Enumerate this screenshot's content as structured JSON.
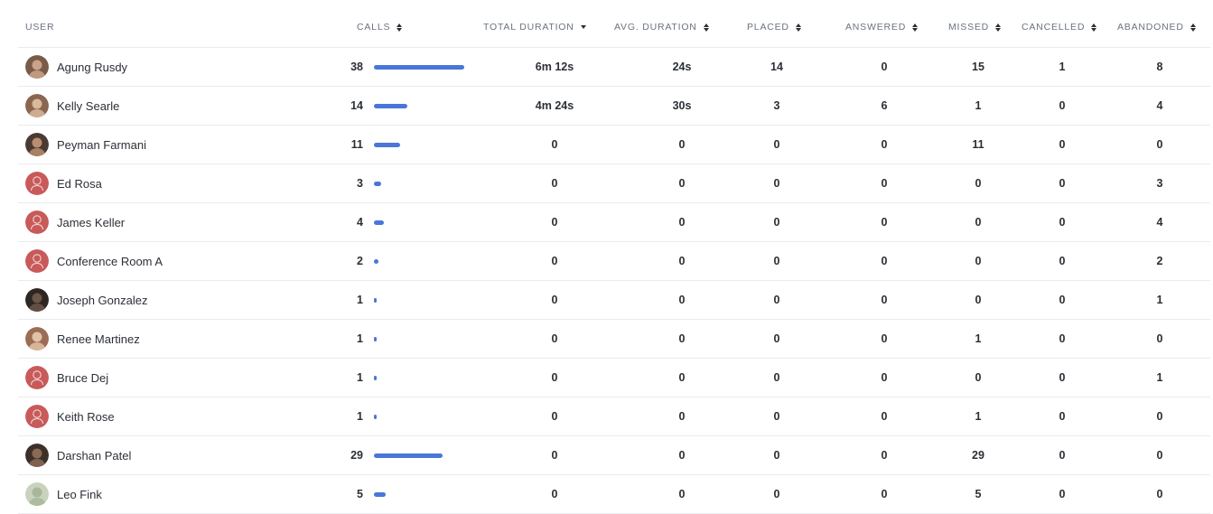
{
  "columns": {
    "user": "USER",
    "calls": "CALLS",
    "total_duration": "TOTAL DURATION",
    "avg_duration": "AVG. DURATION",
    "placed": "PLACED",
    "answered": "ANSWERED",
    "missed": "MISSED",
    "cancelled": "CANCELLED",
    "abandoned": "ABANDONED"
  },
  "sort": {
    "column": "total_duration",
    "direction": "descending"
  },
  "bar_max_calls": 38,
  "colors": {
    "bar": "#4a76d9",
    "placeholder_avatar": "#c85a5a"
  },
  "rows": [
    {
      "name": "Agung Rusdy",
      "avatar": "photo",
      "calls": "38",
      "total": "6m 12s",
      "avg": "24s",
      "placed": "14",
      "answered": "0",
      "missed": "15",
      "cancelled": "1",
      "abandoned": "8"
    },
    {
      "name": "Kelly Searle",
      "avatar": "photo",
      "calls": "14",
      "total": "4m 24s",
      "avg": "30s",
      "placed": "3",
      "answered": "6",
      "missed": "1",
      "cancelled": "0",
      "abandoned": "4"
    },
    {
      "name": "Peyman Farmani",
      "avatar": "photo",
      "calls": "11",
      "total": "0",
      "avg": "0",
      "placed": "0",
      "answered": "0",
      "missed": "11",
      "cancelled": "0",
      "abandoned": "0"
    },
    {
      "name": "Ed Rosa",
      "avatar": "placeholder",
      "calls": "3",
      "total": "0",
      "avg": "0",
      "placed": "0",
      "answered": "0",
      "missed": "0",
      "cancelled": "0",
      "abandoned": "3"
    },
    {
      "name": "James Keller",
      "avatar": "placeholder",
      "calls": "4",
      "total": "0",
      "avg": "0",
      "placed": "0",
      "answered": "0",
      "missed": "0",
      "cancelled": "0",
      "abandoned": "4"
    },
    {
      "name": "Conference Room A",
      "avatar": "placeholder",
      "calls": "2",
      "total": "0",
      "avg": "0",
      "placed": "0",
      "answered": "0",
      "missed": "0",
      "cancelled": "0",
      "abandoned": "2"
    },
    {
      "name": "Joseph Gonzalez",
      "avatar": "photo",
      "calls": "1",
      "total": "0",
      "avg": "0",
      "placed": "0",
      "answered": "0",
      "missed": "0",
      "cancelled": "0",
      "abandoned": "1"
    },
    {
      "name": "Renee Martinez",
      "avatar": "photo",
      "calls": "1",
      "total": "0",
      "avg": "0",
      "placed": "0",
      "answered": "0",
      "missed": "1",
      "cancelled": "0",
      "abandoned": "0"
    },
    {
      "name": "Bruce Dej",
      "avatar": "placeholder",
      "calls": "1",
      "total": "0",
      "avg": "0",
      "placed": "0",
      "answered": "0",
      "missed": "0",
      "cancelled": "0",
      "abandoned": "1"
    },
    {
      "name": "Keith Rose",
      "avatar": "placeholder",
      "calls": "1",
      "total": "0",
      "avg": "0",
      "placed": "0",
      "answered": "0",
      "missed": "1",
      "cancelled": "0",
      "abandoned": "0"
    },
    {
      "name": "Darshan Patel",
      "avatar": "photo",
      "calls": "29",
      "total": "0",
      "avg": "0",
      "placed": "0",
      "answered": "0",
      "missed": "29",
      "cancelled": "0",
      "abandoned": "0"
    },
    {
      "name": "Leo Fink",
      "avatar": "photo",
      "calls": "5",
      "total": "0",
      "avg": "0",
      "placed": "0",
      "answered": "0",
      "missed": "5",
      "cancelled": "0",
      "abandoned": "0"
    }
  ]
}
